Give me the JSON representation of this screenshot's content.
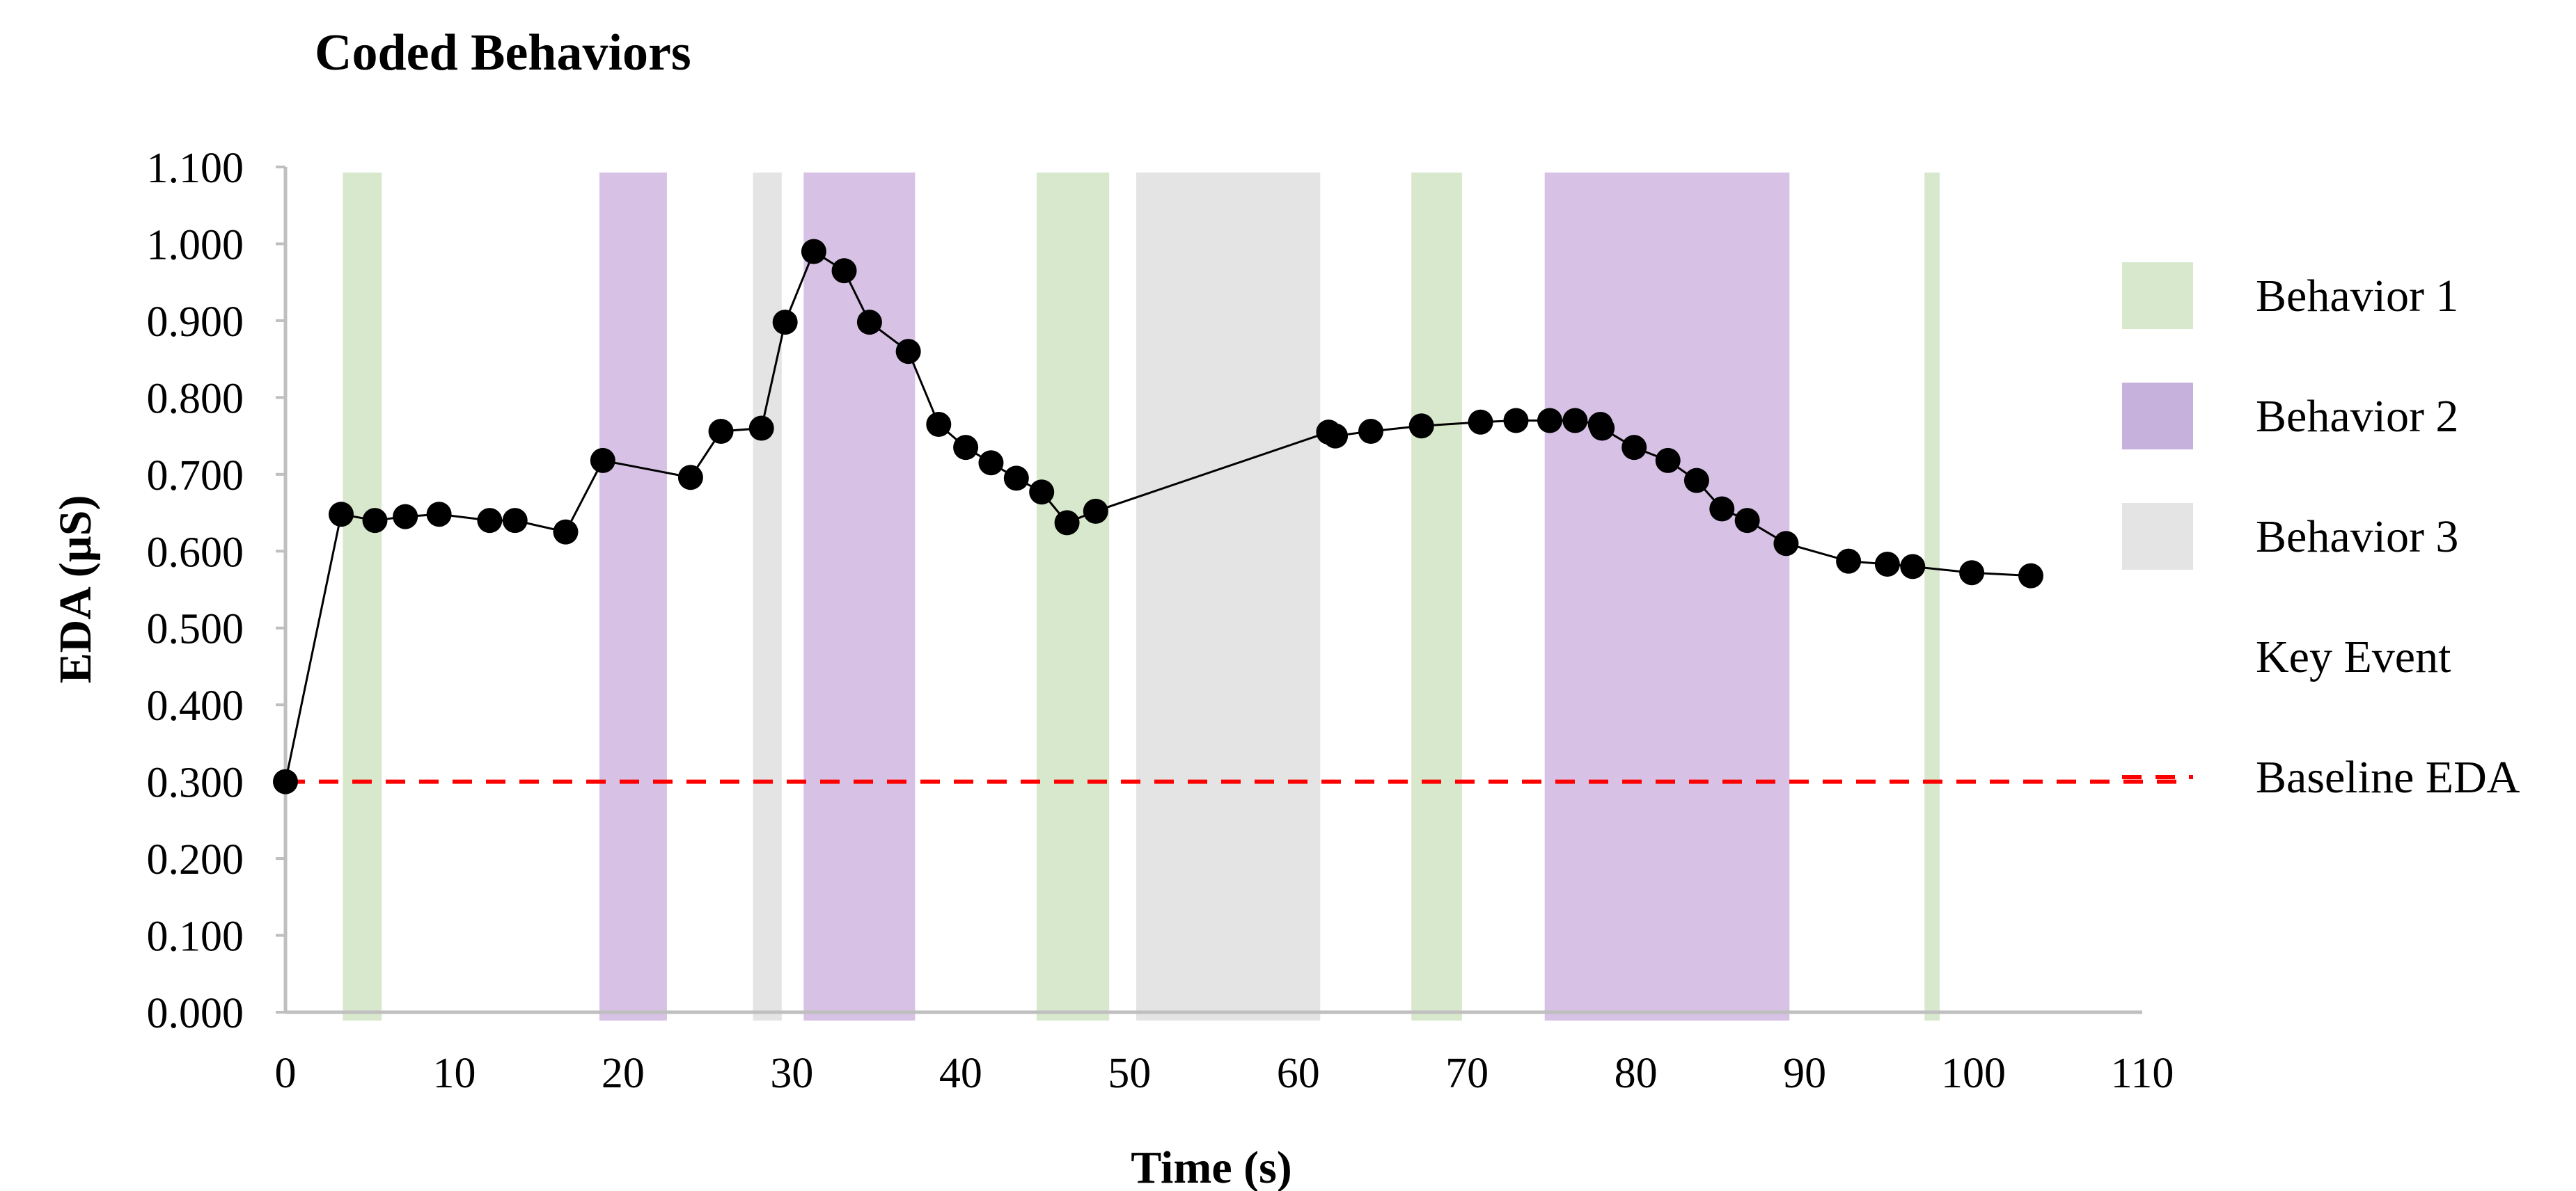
{
  "chart_data": {
    "type": "line",
    "title": "Coded Behaviors",
    "xlabel": "Time (s)",
    "ylabel": "EDA (µS)",
    "xlim": [
      0,
      110
    ],
    "ylim": [
      0,
      1.1
    ],
    "x_ticks": [
      "0",
      "10",
      "20",
      "30",
      "40",
      "50",
      "60",
      "70",
      "80",
      "90",
      "100",
      "110"
    ],
    "y_ticks": [
      "0.000",
      "0.100",
      "0.200",
      "0.300",
      "0.400",
      "0.500",
      "0.600",
      "0.700",
      "0.800",
      "0.900",
      "1.000",
      "1.100"
    ],
    "series": [
      {
        "name": "EDA",
        "color": "#000000",
        "points": [
          [
            0,
            0.3
          ],
          [
            3.3,
            0.648
          ],
          [
            5.3,
            0.64
          ],
          [
            7.1,
            0.645
          ],
          [
            9.1,
            0.648
          ],
          [
            12.1,
            0.64
          ],
          [
            13.6,
            0.64
          ],
          [
            16.6,
            0.625
          ],
          [
            18.8,
            0.718
          ],
          [
            24,
            0.696
          ],
          [
            25.8,
            0.756
          ],
          [
            28.2,
            0.76
          ],
          [
            29.6,
            0.898
          ],
          [
            31.3,
            0.99
          ],
          [
            33.1,
            0.965
          ],
          [
            34.6,
            0.898
          ],
          [
            36.9,
            0.86
          ],
          [
            38.7,
            0.765
          ],
          [
            40.3,
            0.735
          ],
          [
            41.8,
            0.715
          ],
          [
            43.3,
            0.695
          ],
          [
            44.8,
            0.677
          ],
          [
            46.3,
            0.637
          ],
          [
            48,
            0.652
          ],
          [
            61.8,
            0.755
          ],
          [
            62.2,
            0.75
          ],
          [
            64.3,
            0.756
          ],
          [
            67.3,
            0.763
          ],
          [
            70.8,
            0.768
          ],
          [
            72.9,
            0.77
          ],
          [
            74.9,
            0.77
          ],
          [
            76.4,
            0.77
          ],
          [
            77.9,
            0.765
          ],
          [
            78,
            0.76
          ],
          [
            79.9,
            0.735
          ],
          [
            81.9,
            0.718
          ],
          [
            83.6,
            0.692
          ],
          [
            85.1,
            0.655
          ],
          [
            86.6,
            0.64
          ],
          [
            88.9,
            0.61
          ],
          [
            92.6,
            0.587
          ],
          [
            94.9,
            0.583
          ],
          [
            96.4,
            0.58
          ],
          [
            99.9,
            0.572
          ],
          [
            103.4,
            0.568
          ]
        ]
      }
    ],
    "shaded_regions": [
      {
        "category": "Behavior 1",
        "x0": 3.4,
        "x1": 5.7
      },
      {
        "category": "Behavior 2",
        "x0": 18.6,
        "x1": 22.6
      },
      {
        "category": "Behavior 3",
        "x0": 27.7,
        "x1": 29.4
      },
      {
        "category": "Behavior 2",
        "x0": 30.7,
        "x1": 37.3
      },
      {
        "category": "Behavior 1",
        "x0": 44.5,
        "x1": 48.8
      },
      {
        "category": "Behavior 3",
        "x0": 50.4,
        "x1": 61.3
      },
      {
        "category": "Behavior 1",
        "x0": 66.7,
        "x1": 69.7
      },
      {
        "category": "Behavior 2",
        "x0": 74.6,
        "x1": 89.1
      },
      {
        "category": "Behavior 1",
        "x0": 97.1,
        "x1": 98
      }
    ],
    "baseline": {
      "label": "Baseline EDA",
      "value": 0.3,
      "color": "#ff0000"
    },
    "legend": [
      {
        "label": "Behavior 1",
        "color": "#d8e8cc",
        "kind": "swatch"
      },
      {
        "label": "Behavior 2",
        "color": "#c6b0dc",
        "kind": "swatch"
      },
      {
        "label": "Behavior 3",
        "color": "#e4e4e4",
        "kind": "swatch"
      },
      {
        "label": "Key Event",
        "color": "",
        "kind": "none"
      },
      {
        "label": "Baseline EDA",
        "color": "#ff0000",
        "kind": "dashed-line"
      }
    ],
    "colors": {
      "Behavior 1": "#d8e8cc",
      "Behavior 2": "#d7c2e6",
      "Behavior 3": "#e4e4e4",
      "axis": "#bfbfbf"
    },
    "legend_position": "right"
  }
}
